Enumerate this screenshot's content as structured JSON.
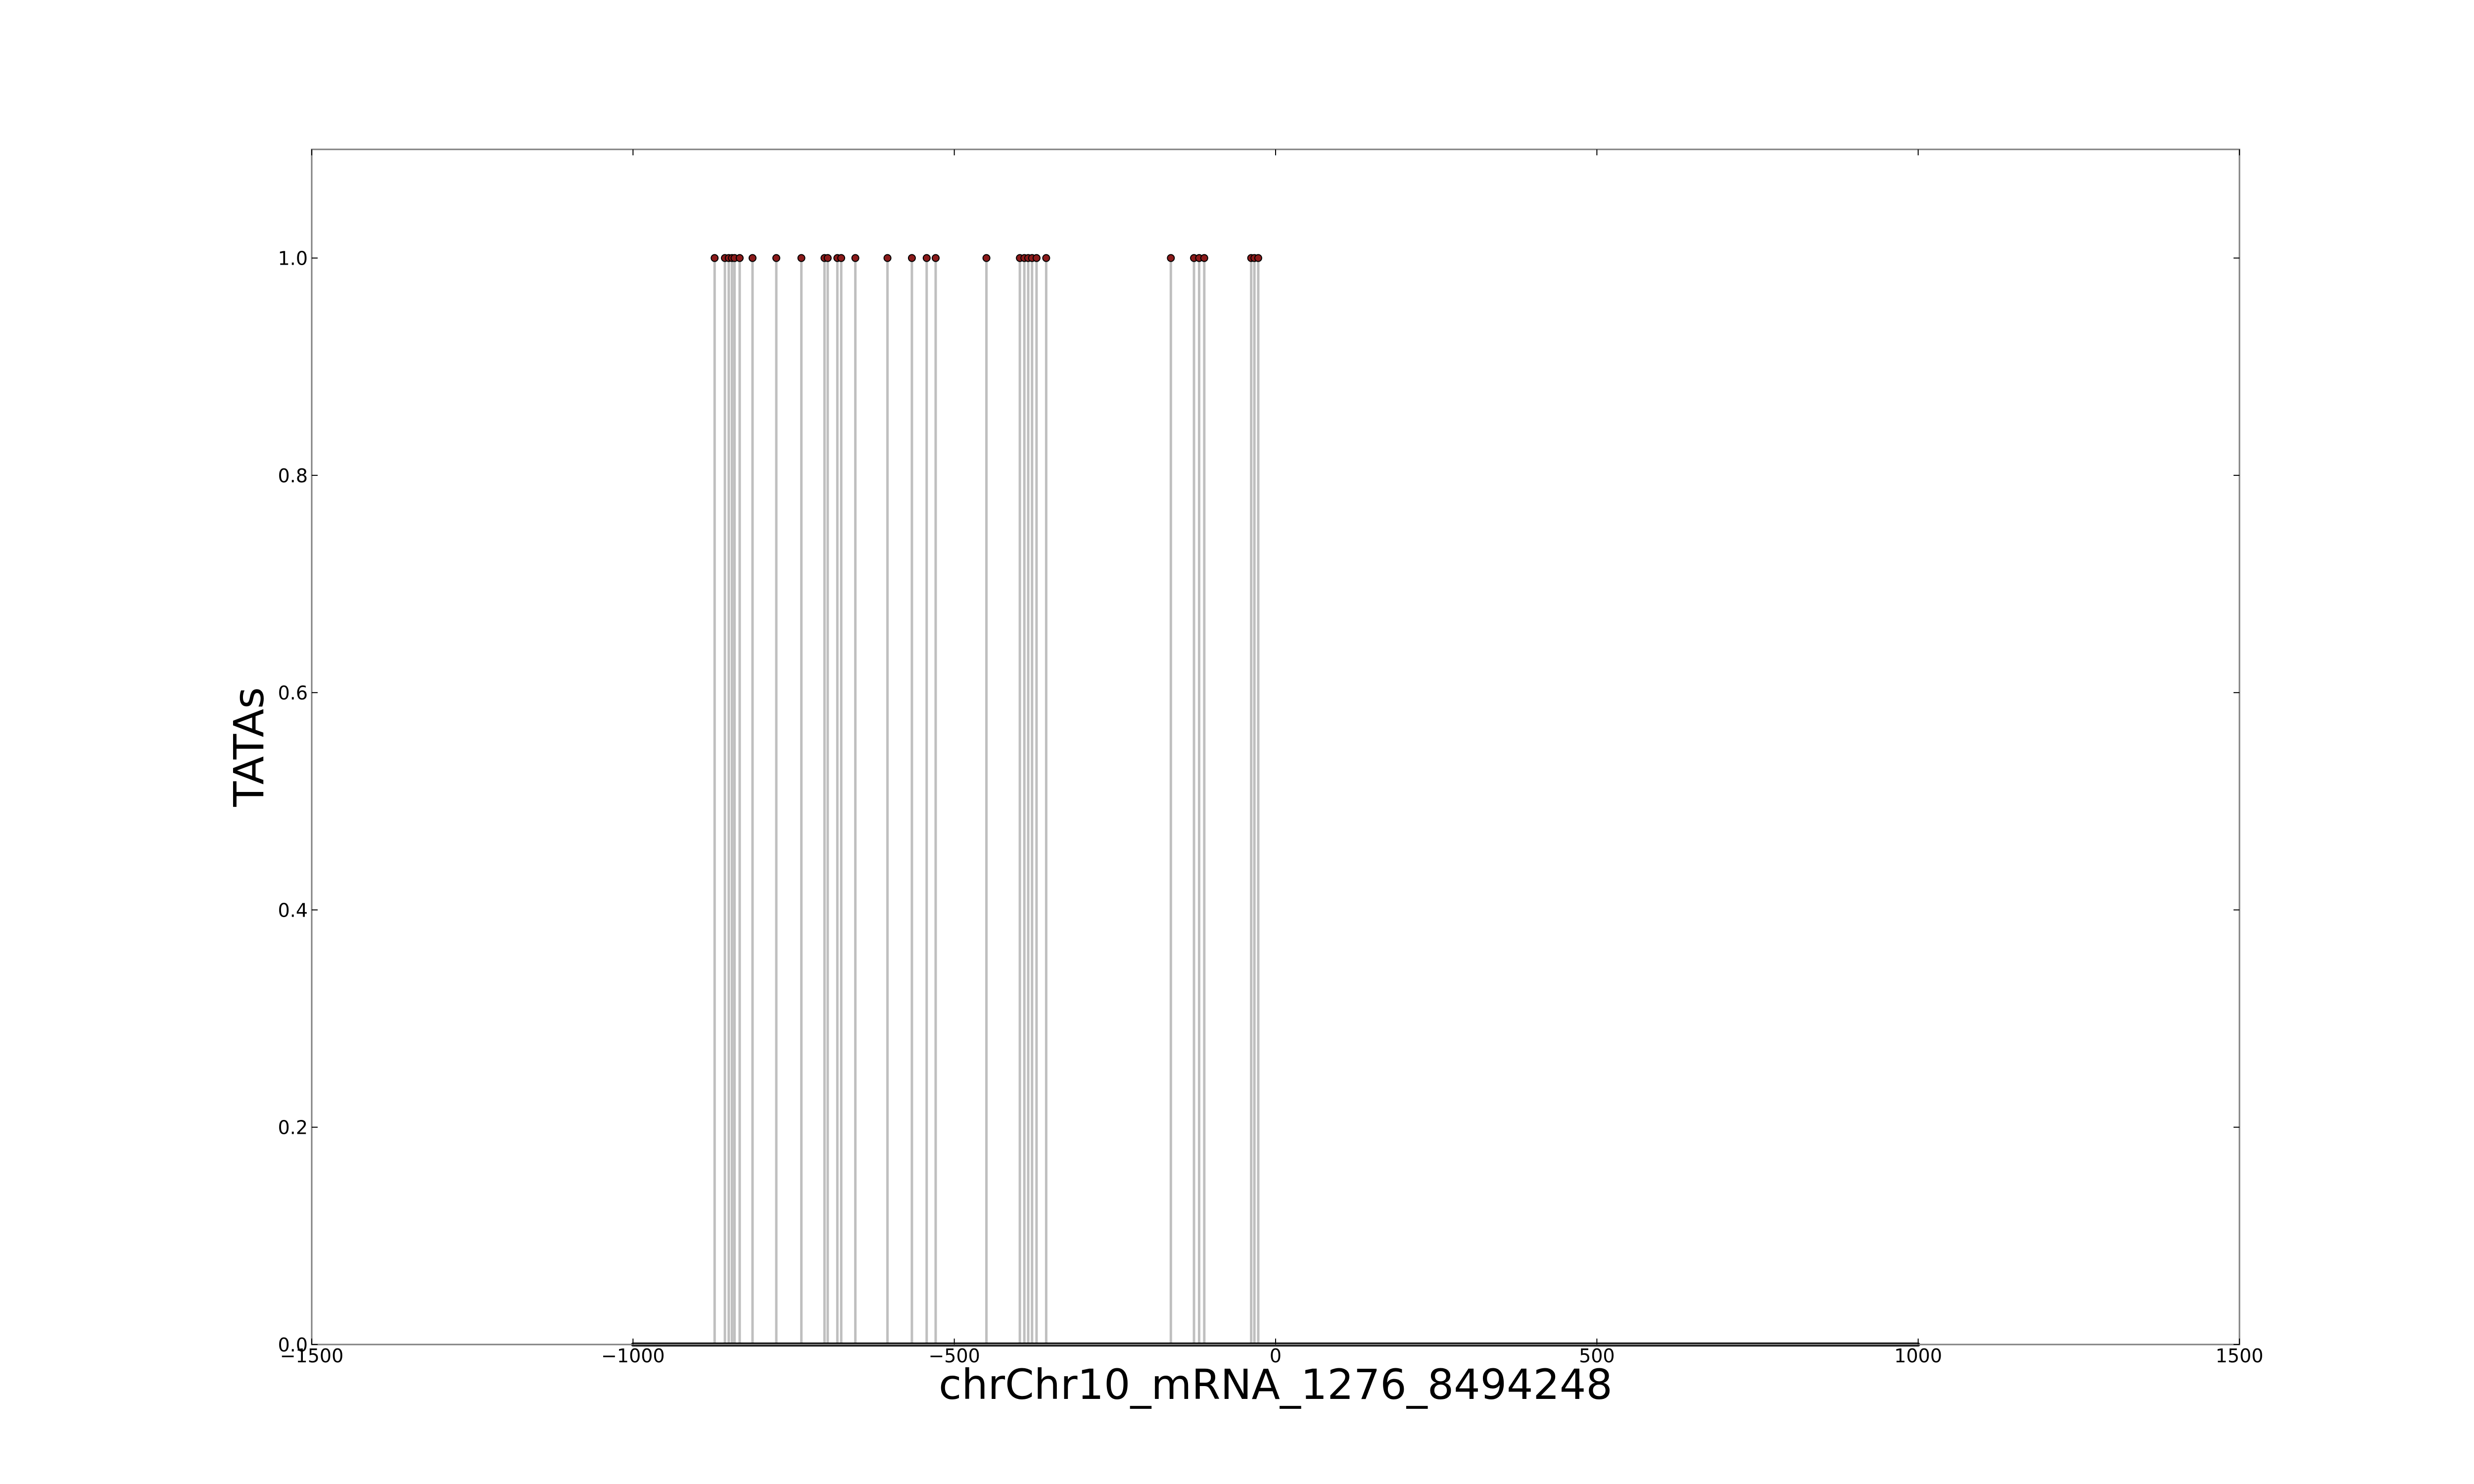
{
  "chart_data": {
    "type": "stem",
    "title": "",
    "xlabel": "chrChr10_mRNA_1276_8494248",
    "ylabel": "TATAs",
    "xlim": [
      -1500,
      1500
    ],
    "ylim": [
      0,
      1.1
    ],
    "xticks": [
      -1500,
      -1000,
      -500,
      0,
      500,
      1000,
      1500
    ],
    "xtick_labels": [
      "−1500",
      "−1000",
      "−500",
      "0",
      "500",
      "1000",
      "1500"
    ],
    "yticks": [
      0.0,
      0.2,
      0.4,
      0.6,
      0.8,
      1.0
    ],
    "ytick_labels": [
      "0.0",
      "0.2",
      "0.4",
      "0.6",
      "0.8",
      "1.0"
    ],
    "baseline_range": [
      -1000,
      1000
    ],
    "grid": false,
    "legend": "none",
    "series": [
      {
        "x": [
          -873,
          -857,
          -851,
          -846,
          -842,
          -834,
          -814,
          -777,
          -738,
          -702,
          -697,
          -682,
          -676,
          -654,
          -604,
          -566,
          -543,
          -529,
          -450,
          -398,
          -391,
          -385,
          -379,
          -372,
          -357,
          -163,
          -127,
          -119,
          -111,
          -38,
          -33,
          -27
        ],
        "y": [
          1,
          1,
          1,
          1,
          1,
          1,
          1,
          1,
          1,
          1,
          1,
          1,
          1,
          1,
          1,
          1,
          1,
          1,
          1,
          1,
          1,
          1,
          1,
          1,
          1,
          1,
          1,
          1,
          1,
          1,
          1,
          1
        ]
      }
    ],
    "colors": {
      "stem": "#bfbfbf",
      "marker_fill": "#8b1a1a",
      "marker_edge": "#000000",
      "baseline": "#000000",
      "frame": "#808080"
    }
  }
}
